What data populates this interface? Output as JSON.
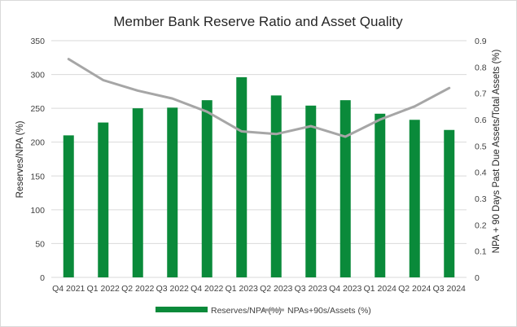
{
  "chart_data": {
    "type": "bar",
    "title": "Member Bank Reserve Ratio and Asset Quality",
    "categories": [
      "Q4 2021",
      "Q1 2022",
      "Q2 2022",
      "Q3 2022",
      "Q4 2022",
      "Q1 2023",
      "Q2 2023",
      "Q3 2023",
      "Q4 2023",
      "Q1 2024",
      "Q2 2024",
      "Q3 2024"
    ],
    "series": [
      {
        "name": "Reserves/NPA (%)",
        "type": "bar",
        "axis": "left",
        "color": "#0a8a3a",
        "values": [
          210,
          229,
          250,
          251,
          262,
          296,
          269,
          254,
          262,
          242,
          233,
          218
        ]
      },
      {
        "name": "NPAs+90s/Assets (%)",
        "type": "line",
        "axis": "right",
        "color": "#a6a6a6",
        "values": [
          0.83,
          0.75,
          0.71,
          0.68,
          0.63,
          0.555,
          0.545,
          0.575,
          0.535,
          0.6,
          0.65,
          0.72
        ]
      }
    ],
    "ylabel": "Reserves/NPA (%)",
    "y2label": "NPA + 90 Days Past Due Assets/Total Assets (%)",
    "ylim": [
      0,
      350
    ],
    "y2lim": [
      0,
      0.9
    ],
    "yticks": [
      "0",
      "50",
      "100",
      "150",
      "200",
      "250",
      "300",
      "350"
    ],
    "y2ticks": [
      "0",
      "0.1",
      "0.2",
      "0.3",
      "0.4",
      "0.5",
      "0.6",
      "0.7",
      "0.8",
      "0.9"
    ],
    "grid": true,
    "legend": "bottom"
  }
}
